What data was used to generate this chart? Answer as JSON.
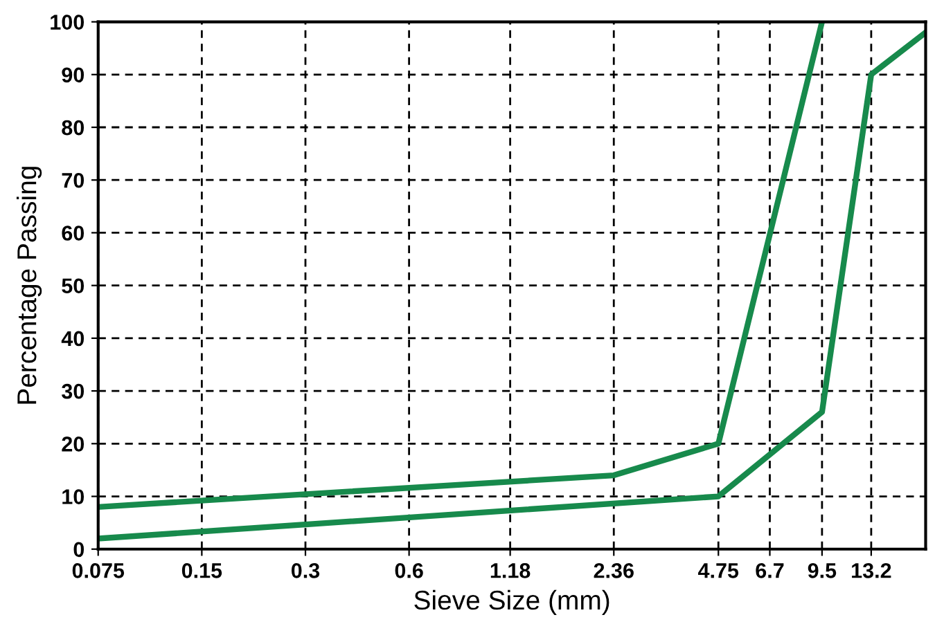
{
  "chart_data": {
    "type": "line",
    "xlabel": "Sieve Size (mm)",
    "ylabel": "Percentage Passing",
    "log": "x",
    "xlim": [
      0.075,
      19
    ],
    "ylim": [
      0,
      100
    ],
    "xticks": [
      0.075,
      0.15,
      0.3,
      0.6,
      1.18,
      2.36,
      4.75,
      6.7,
      9.5,
      13.2
    ],
    "yticks": [
      0,
      10,
      20,
      30,
      40,
      50,
      60,
      70,
      80,
      90,
      100
    ],
    "grid": true,
    "line_style": "solid",
    "marker": "none",
    "series": [
      {
        "color": "#178a4c",
        "x": [
          0.075,
          2.36,
          4.75,
          9.5
        ],
        "values": [
          8,
          14,
          20,
          100
        ]
      },
      {
        "color": "#178a4c",
        "x": [
          0.075,
          4.75,
          9.5,
          13.2,
          19
        ],
        "values": [
          2,
          10,
          26,
          90,
          98
        ]
      }
    ]
  }
}
